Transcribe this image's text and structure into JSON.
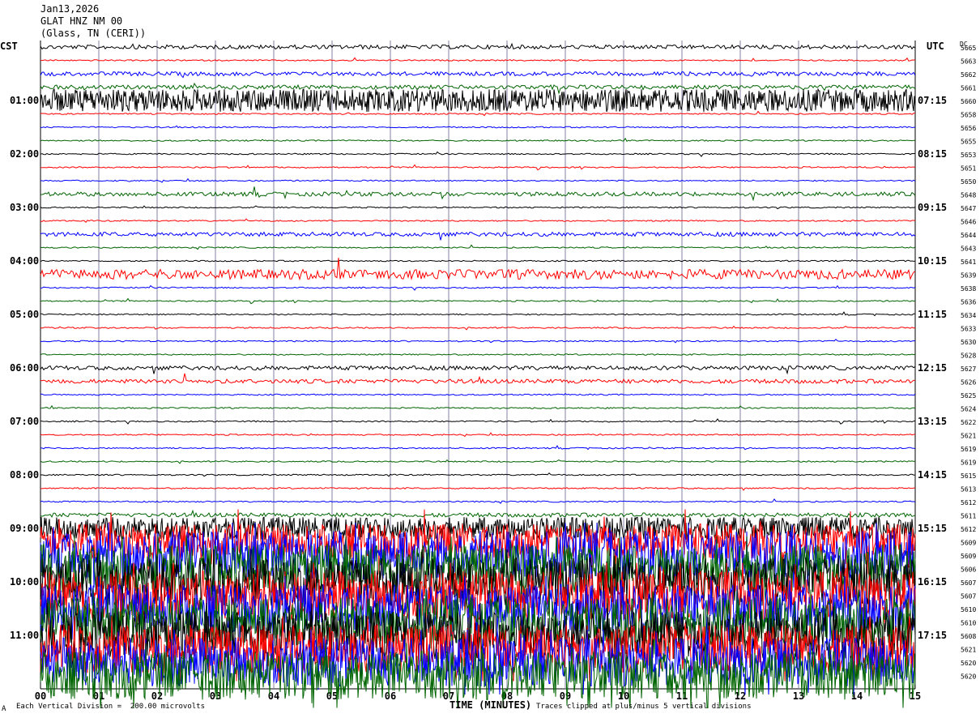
{
  "header": {
    "date": "Jan13,2026",
    "channel": "GLAT HNZ NM 00",
    "location": "(Glass, TN (CERI))"
  },
  "left_tz": "CST",
  "right_tz": "UTC",
  "dc_label": "DC",
  "colors": {
    "black": "#000000",
    "red": "#ff0000",
    "blue": "#0000ff",
    "green": "#006400",
    "grid": "#8080a0"
  },
  "footer": {
    "division_note": "Each Vertical Division =  200.00 microvolts",
    "xlabel": "TIME (MINUTES)",
    "clip_note": "Traces clipped at plus/minus 5 vertical divisions",
    "corner": "A"
  },
  "chart_data": {
    "type": "line",
    "title": "GLAT HNZ NM 00",
    "xlabel": "TIME (MINUTES)",
    "xlim": [
      0,
      15
    ],
    "x_ticks": [
      "00",
      "01",
      "02",
      "03",
      "04",
      "05",
      "06",
      "07",
      "08",
      "09",
      "10",
      "11",
      "12",
      "13",
      "14",
      "15"
    ],
    "left_hour_labels": [
      "01:00",
      "02:00",
      "03:00",
      "04:00",
      "05:00",
      "06:00",
      "07:00",
      "08:00",
      "09:00",
      "10:00",
      "11:00"
    ],
    "right_hour_labels": [
      "07:15",
      "08:15",
      "09:15",
      "10:15",
      "11:15",
      "12:15",
      "13:15",
      "14:15",
      "15:15",
      "16:15",
      "17:15"
    ],
    "trace_color_cycle": [
      "black",
      "red",
      "blue",
      "green"
    ],
    "dc_values": [
      "5665",
      "5663",
      "5662",
      "5661",
      "5660",
      "5658",
      "5656",
      "5655",
      "5653",
      "5651",
      "5650",
      "5648",
      "5647",
      "5646",
      "5644",
      "5643",
      "5641",
      "5639",
      "5638",
      "5636",
      "5634",
      "5633",
      "5630",
      "5628",
      "5627",
      "5626",
      "5625",
      "5624",
      "5622",
      "5621",
      "5619",
      "5619",
      "5615",
      "5613",
      "5612",
      "5611",
      "5612",
      "5609",
      "5609",
      "5606",
      "5607",
      "5607",
      "5610",
      "5610",
      "5608",
      "5621",
      "5620",
      "5620"
    ],
    "trace_activity": [
      1,
      0,
      1,
      1,
      3,
      0,
      0,
      0,
      0,
      0,
      0,
      1,
      0,
      0,
      1,
      0,
      0,
      2,
      0,
      0,
      0,
      0,
      0,
      0,
      1,
      1,
      0,
      0,
      0,
      0,
      0,
      0,
      0,
      0,
      0,
      1,
      3,
      4,
      5,
      5,
      5,
      5,
      5,
      5,
      5,
      5,
      5,
      5
    ]
  }
}
